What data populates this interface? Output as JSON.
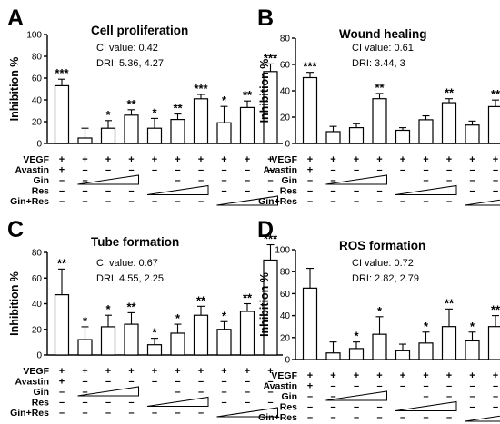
{
  "chart_data": [
    {
      "type": "bar",
      "panel": "A",
      "title": "Cell proliferation",
      "annotations": [
        "CI value:  0.42",
        "DRI: 5.36, 4.27"
      ],
      "ylabel": "Inhibition %",
      "ylim": [
        0,
        100
      ],
      "yticks": [
        0,
        20,
        40,
        60,
        80,
        100
      ],
      "values": [
        53,
        5,
        14,
        26,
        14,
        22,
        41,
        19,
        33,
        66
      ],
      "errors": [
        6,
        9,
        7,
        5,
        9,
        5,
        4,
        15,
        6,
        7
      ],
      "significance": [
        "***",
        "",
        "*",
        "**",
        "*",
        "**",
        "***",
        "*",
        "**",
        "***"
      ]
    },
    {
      "type": "bar",
      "panel": "B",
      "title": "Wound healing",
      "annotations": [
        "CI value:  0.61",
        "DRI: 3.44, 3"
      ],
      "ylabel": "Inhibition %",
      "ylim": [
        0,
        80
      ],
      "yticks": [
        0,
        20,
        40,
        60,
        80
      ],
      "values": [
        50,
        9,
        12,
        34,
        10,
        18,
        31,
        14,
        28,
        73
      ],
      "errors": [
        4,
        4,
        3,
        4,
        2,
        3,
        3,
        3,
        5,
        4
      ],
      "significance": [
        "***",
        "",
        "",
        "**",
        "",
        "",
        "**",
        "",
        "**",
        "***"
      ]
    },
    {
      "type": "bar",
      "panel": "C",
      "title": "Tube formation",
      "annotations": [
        "CI value:  0.67",
        "DRI: 4.55, 2.25"
      ],
      "ylabel": "Inhibition %",
      "ylim": [
        0,
        80
      ],
      "yticks": [
        0,
        20,
        40,
        60,
        80
      ],
      "values": [
        47,
        12,
        22,
        24,
        8,
        17,
        31,
        20,
        34,
        74
      ],
      "errors": [
        20,
        10,
        9,
        9,
        5,
        7,
        7,
        6,
        6,
        12
      ],
      "significance": [
        "**",
        "*",
        "*",
        "**",
        "*",
        "*",
        "**",
        "*",
        "**",
        "***"
      ]
    },
    {
      "type": "bar",
      "panel": "D",
      "title": "ROS formation",
      "annotations": [
        "CI value:  0.72",
        "DRI: 2.82, 2.79"
      ],
      "ylabel": "Inhibition %",
      "ylim": [
        0,
        100
      ],
      "yticks": [
        0,
        20,
        40,
        60,
        80,
        100
      ],
      "values": [
        65,
        6,
        10,
        23,
        8,
        15,
        30,
        17,
        30,
        78
      ],
      "errors": [
        18,
        10,
        6,
        16,
        6,
        10,
        16,
        8,
        10,
        17
      ],
      "significance": [
        "",
        "",
        "*",
        "*",
        "",
        "*",
        "**",
        "*",
        "**",
        "***"
      ]
    }
  ],
  "treatment_table": {
    "rows": [
      {
        "label": "VEGF",
        "marks": [
          "+",
          "+",
          "+",
          "+",
          "+",
          "+",
          "+",
          "+",
          "+",
          "+"
        ]
      },
      {
        "label": "Avastin",
        "marks": [
          "+",
          "–",
          "–",
          "–",
          "–",
          "–",
          "–",
          "–",
          "–",
          "–"
        ]
      },
      {
        "label": "Gin",
        "marks": [
          "–",
          "–",
          "",
          "",
          "",
          "–",
          "–",
          "–",
          "–",
          "–"
        ],
        "wedge": [
          1,
          3
        ]
      },
      {
        "label": "Res",
        "marks": [
          "–",
          "–",
          "–",
          "–",
          "",
          "",
          "",
          "–",
          "–",
          "–"
        ],
        "wedge": [
          4,
          6
        ]
      },
      {
        "label": "Gin+Res",
        "marks": [
          "–",
          "–",
          "–",
          "–",
          "–",
          "–",
          "–",
          "",
          "",
          ""
        ],
        "wedge": [
          7,
          9
        ]
      }
    ]
  }
}
